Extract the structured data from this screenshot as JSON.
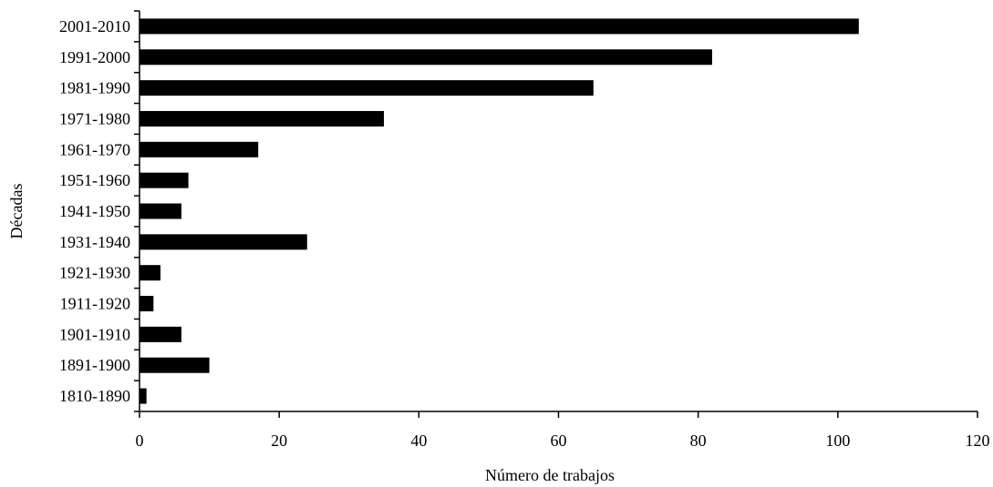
{
  "chart_data": {
    "type": "bar",
    "orientation": "horizontal",
    "categories": [
      "2001-2010",
      "1991-2000",
      "1981-1990",
      "1971-1980",
      "1961-1970",
      "1951-1960",
      "1941-1950",
      "1931-1940",
      "1921-1930",
      "1911-1920",
      "1901-1910",
      "1891-1900",
      "1810-1890"
    ],
    "values": [
      103,
      82,
      65,
      35,
      17,
      7,
      6,
      24,
      3,
      2,
      6,
      10,
      1
    ],
    "title": "",
    "xlabel": "Número de trabajos",
    "ylabel": "Décadas",
    "xlim": [
      0,
      120
    ],
    "xticks": [
      0,
      20,
      40,
      60,
      80,
      100,
      120
    ],
    "grid": false,
    "bar_color": "#000000"
  }
}
